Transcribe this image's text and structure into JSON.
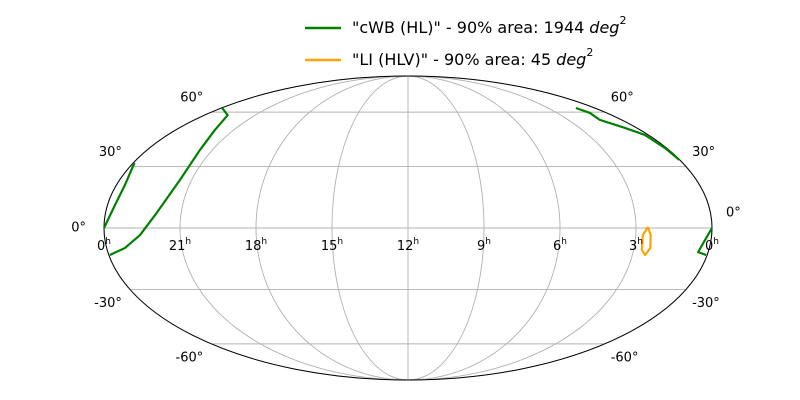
{
  "chart_data": {
    "type": "line",
    "projection": "mollweide",
    "xlim": [
      24,
      0
    ],
    "xticks": [
      {
        "value": 24,
        "label": "0"
      },
      21,
      18,
      15,
      12,
      9,
      6,
      3,
      0
    ],
    "xtick_unit": "h",
    "ylim": [
      -90,
      90
    ],
    "yticks": [
      {
        "value": -60,
        "label": "-60°"
      },
      {
        "value": -30,
        "label": "-30°"
      },
      {
        "value": 0,
        "label": "0°"
      },
      {
        "value": 30,
        "label": "30°"
      },
      {
        "value": 60,
        "label": "60°"
      }
    ],
    "grid": true,
    "legend": "upper center",
    "area_unit": "deg",
    "area_unit_exponent": 2,
    "series": [
      {
        "name": "\"cWB (HL)\" - 90% area: 1944",
        "color": "#008000",
        "x": [
          24.0,
          23.7,
          23.65,
          23.95,
          null,
          23.96,
          23.27,
          22.59,
          22.02,
          21.49,
          21.57,
          21.97,
          22.62,
          23.95,
          null,
          1.2,
          1.01,
          1.23,
          0.62,
          0.17,
          0.07,
          0.02,
          null,
          0.0,
          0.24,
          0.4,
          0.04
        ],
        "values": [
          0,
          11.1,
          20.8,
          31.9,
          null,
          -13.0,
          -9.6,
          -3.4,
          6.2,
          23.3,
          38.6,
          49.4,
          58.1,
          62.6,
          null,
          62.6,
          59.5,
          55.3,
          50.6,
          46.7,
          39.6,
          33.4,
          null,
          0,
          -5.8,
          -11.6,
          -13.0
        ]
      },
      {
        "name": "\"LI (HLV)\" - 90% area: 45",
        "color": "#ffa500",
        "x": [
          2.53,
          2.41,
          2.35,
          2.49,
          2.67,
          2.72,
          2.53
        ],
        "values": [
          0.5,
          -3.4,
          -9.6,
          -13.0,
          -10.6,
          -3.4,
          0.5
        ]
      }
    ]
  }
}
